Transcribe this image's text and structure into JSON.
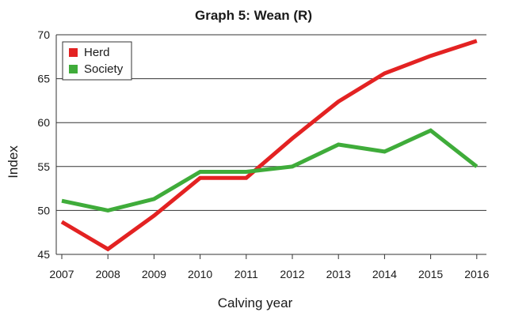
{
  "chart_data": {
    "type": "line",
    "title": "Graph 5: Wean (R)",
    "xlabel": "Calving year",
    "ylabel": "Index",
    "x": [
      "2007",
      "2008",
      "2009",
      "2010",
      "2011",
      "2012",
      "2013",
      "2014",
      "2015",
      "2016"
    ],
    "yticks": [
      "45",
      "50",
      "55",
      "60",
      "65",
      "70"
    ],
    "ylim": [
      45,
      70
    ],
    "grid": true,
    "legend_position": "top-left",
    "series": [
      {
        "name": "Herd",
        "color": "#e32222",
        "values": [
          48.7,
          45.6,
          49.4,
          53.7,
          53.7,
          58.2,
          62.4,
          65.6,
          67.6,
          69.3
        ]
      },
      {
        "name": "Society",
        "color": "#3fac3a",
        "values": [
          51.1,
          50.0,
          51.3,
          54.4,
          54.4,
          55.0,
          57.5,
          56.7,
          59.1,
          55.0
        ]
      }
    ]
  }
}
